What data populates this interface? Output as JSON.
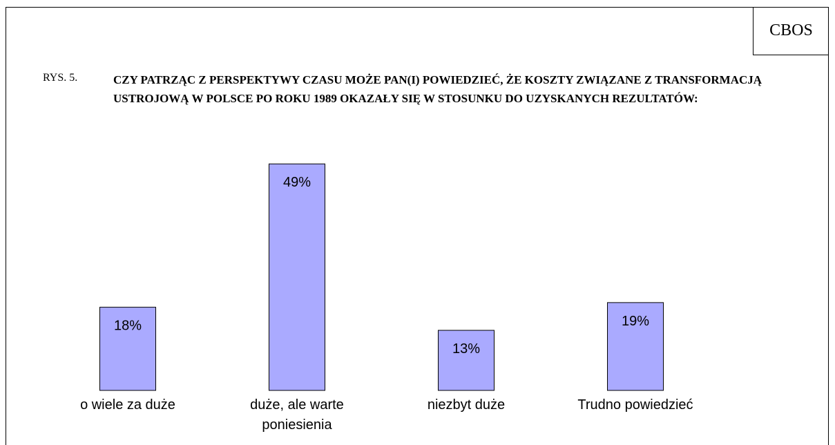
{
  "chart_data": {
    "type": "bar",
    "source": "CBOS",
    "figure_label": "RYS. 5.",
    "title": "CZY PATRZĄC Z PERSPEKTYWY CZASU MOŻE PAN(I) POWIEDZIEĆ, ŻE KOSZTY ZWIĄZANE Z TRANSFORMACJĄ USTROJOWĄ W POLSCE PO ROKU 1989 OKAZAŁY SIĘ W STOSUNKU DO UZYSKANYCH REZULTATÓW:",
    "categories": [
      "o wiele za duże",
      "duże, ale warte poniesienia",
      "niezbyt duże",
      "Trudno powiedzieć"
    ],
    "values": [
      18,
      49,
      13,
      19
    ],
    "value_labels": [
      "18%",
      "49%",
      "13%",
      "19%"
    ],
    "color": "#aaaaff"
  }
}
